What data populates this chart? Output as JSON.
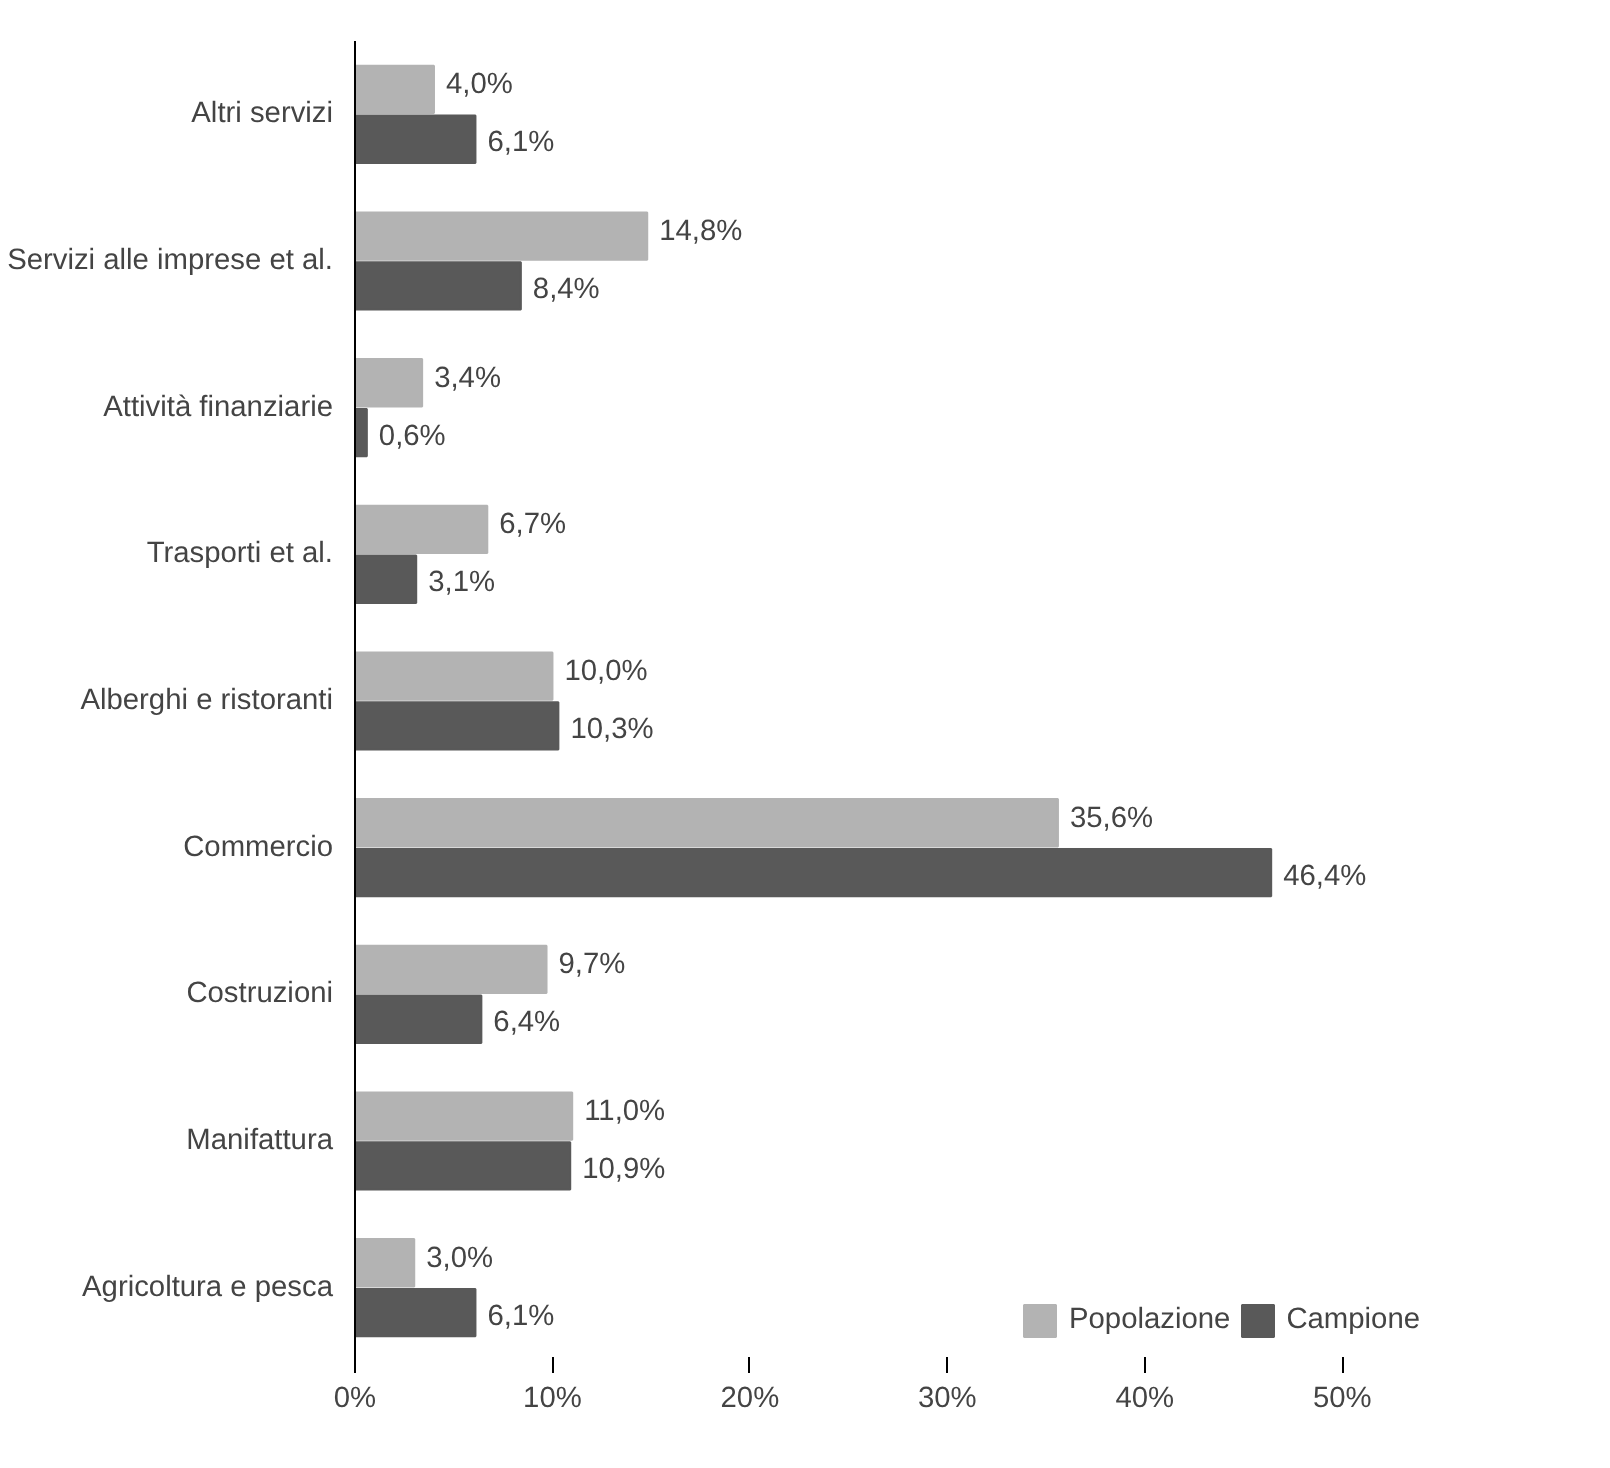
{
  "chart_data": {
    "type": "bar",
    "orientation": "horizontal",
    "categories": [
      "Altri servizi",
      "Servizi alle imprese et al.",
      "Attività finanziarie",
      "Trasporti et al.",
      "Alberghi e ristoranti",
      "Commercio",
      "Costruzioni",
      "Manifattura",
      "Agricoltura e pesca"
    ],
    "series": [
      {
        "name": "Popolazione",
        "color": "#b3b3b3",
        "values": [
          4.0,
          14.8,
          3.4,
          6.7,
          10.0,
          35.6,
          9.7,
          11.0,
          3.0
        ],
        "value_labels": [
          "4,0%",
          "14,8%",
          "3,4%",
          "6,7%",
          "10,0%",
          "35,6%",
          "9,7%",
          "11,0%",
          "3,0%"
        ]
      },
      {
        "name": "Campione",
        "color": "#595959",
        "values": [
          6.1,
          8.4,
          0.6,
          3.1,
          10.3,
          46.4,
          6.4,
          10.9,
          6.1
        ],
        "value_labels": [
          "6,1%",
          "8,4%",
          "0,6%",
          "3,1%",
          "10,3%",
          "46,4%",
          "6,4%",
          "10,9%",
          "6,1%"
        ]
      }
    ],
    "xlim": [
      0,
      50
    ],
    "xticks": [
      {
        "value": 0,
        "label": "0%"
      },
      {
        "value": 10,
        "label": "10%"
      },
      {
        "value": 20,
        "label": "20%"
      },
      {
        "value": 30,
        "label": "30%"
      },
      {
        "value": 40,
        "label": "40%"
      },
      {
        "value": 50,
        "label": "50%"
      }
    ],
    "grid": false,
    "legend": "bottom right"
  }
}
